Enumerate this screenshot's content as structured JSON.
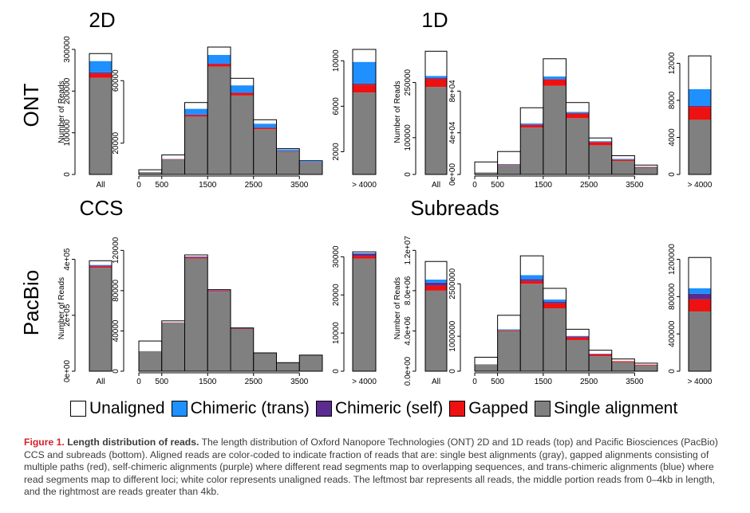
{
  "legend": [
    {
      "label": "Unaligned",
      "color": "#ffffff"
    },
    {
      "label": "Chimeric (trans)",
      "color": "#1e90ff"
    },
    {
      "label": "Chimeric (self)",
      "color": "#5b2c8f"
    },
    {
      "label": "Gapped",
      "color": "#ee1111"
    },
    {
      "label": "Single alignment",
      "color": "#808080"
    }
  ],
  "caption": {
    "label": "Figure 1.",
    "title": "Length distribution of reads.",
    "text": "The length distribution of Oxford Nanopore Technologies (ONT) 2D and 1D reads (top) and Pacific Biosciences (PacBio) CCS and subreads (bottom). Aligned reads are color-coded to indicate fraction of reads that are: single best alignments (gray), gapped alignments consisting of multiple paths (red), self-chimeric alignments (purple) where different read segments map to overlapping sequences, and trans-chimeric alignments (blue) where read segments map to different loci; white color represents unaligned reads. The leftmost bar represents all reads, the middle portion reads from 0–4kb in length, and the rightmost are reads greater than 4kb."
  },
  "row_labels": [
    "ONT",
    "PacBio"
  ],
  "chart_data": [
    {
      "type": "bar",
      "stacked": true,
      "title": "2D",
      "ylabel": "Number of Reads",
      "all": {
        "category": "All",
        "ylim": [
          0,
          300000
        ],
        "yticks": [
          0,
          100000,
          200000,
          300000
        ],
        "ytick_labels": [
          "0",
          "100000",
          "200000",
          "300000"
        ],
        "stack": {
          "single": 232000,
          "gapped": 10000,
          "self": 3000,
          "trans": 27000,
          "unaligned": 18000
        }
      },
      "mid": {
        "x": [
          0,
          500,
          1000,
          1500,
          2000,
          2500,
          3000,
          3500,
          4000
        ],
        "ylim": [
          0,
          80000
        ],
        "yticks": [
          20000,
          60000
        ],
        "ytick_labels": [
          "20000",
          "60000"
        ],
        "xticks": [
          0,
          500,
          1500,
          2500,
          3500
        ],
        "xtick_labels": [
          "0",
          "500",
          "1500",
          "2500",
          "3500"
        ],
        "stacks": [
          {
            "single": 1500,
            "gapped": 0,
            "self": 0,
            "trans": 0,
            "unaligned": 1500
          },
          {
            "single": 9500,
            "gapped": 300,
            "self": 0,
            "trans": 200,
            "unaligned": 2500
          },
          {
            "single": 37000,
            "gapped": 1000,
            "self": 300,
            "trans": 3700,
            "unaligned": 4000
          },
          {
            "single": 69000,
            "gapped": 1500,
            "self": 500,
            "trans": 5500,
            "unaligned": 5000
          },
          {
            "single": 50500,
            "gapped": 1500,
            "self": 400,
            "trans": 4600,
            "unaligned": 4500
          },
          {
            "single": 29000,
            "gapped": 800,
            "self": 200,
            "trans": 2500,
            "unaligned": 2500
          },
          {
            "single": 14500,
            "gapped": 300,
            "self": 100,
            "trans": 1100,
            "unaligned": 500
          },
          {
            "single": 7500,
            "gapped": 200,
            "self": 0,
            "trans": 800,
            "unaligned": 300
          }
        ]
      },
      "gt": {
        "category": "> 4000",
        "ylim": [
          0,
          11000
        ],
        "yticks": [
          2000,
          6000,
          10000
        ],
        "ytick_labels": [
          "2000",
          "6000",
          "10000"
        ],
        "stack": {
          "single": 7200,
          "gapped": 700,
          "self": 100,
          "trans": 1900,
          "unaligned": 1100
        }
      }
    },
    {
      "type": "bar",
      "stacked": true,
      "title": "1D",
      "ylabel": "Number of Reads",
      "all": {
        "category": "All",
        "ylim": [
          0,
          340000
        ],
        "yticks": [
          0,
          100000,
          250000
        ],
        "ytick_labels": [
          "0",
          "100000",
          "250000"
        ],
        "stack": {
          "single": 238000,
          "gapped": 22000,
          "self": 2000,
          "trans": 6000,
          "unaligned": 67000
        }
      },
      "mid": {
        "x": [
          0,
          500,
          1000,
          1500,
          2000,
          2500,
          3000,
          3500,
          4000
        ],
        "ylim": [
          0,
          120000
        ],
        "yticks": [
          0,
          40000,
          80000
        ],
        "ytick_labels": [
          "0e+00",
          "4e+04",
          "8e+04"
        ],
        "xticks": [
          0,
          500,
          1500,
          2500,
          3500
        ],
        "xtick_labels": [
          "0",
          "500",
          "1500",
          "2500",
          "3500"
        ],
        "stacks": [
          {
            "single": 2000,
            "gapped": 0,
            "self": 0,
            "trans": 0,
            "unaligned": 10000
          },
          {
            "single": 9000,
            "gapped": 500,
            "self": 0,
            "trans": 500,
            "unaligned": 12000
          },
          {
            "single": 45000,
            "gapped": 2500,
            "self": 300,
            "trans": 1200,
            "unaligned": 15000
          },
          {
            "single": 85000,
            "gapped": 6000,
            "self": 500,
            "trans": 2500,
            "unaligned": 17000
          },
          {
            "single": 54000,
            "gapped": 4500,
            "self": 300,
            "trans": 1200,
            "unaligned": 9000
          },
          {
            "single": 28000,
            "gapped": 3000,
            "self": 200,
            "trans": 800,
            "unaligned": 3000
          },
          {
            "single": 13000,
            "gapped": 1200,
            "self": 100,
            "trans": 700,
            "unaligned": 3000
          },
          {
            "single": 6500,
            "gapped": 600,
            "self": 0,
            "trans": 400,
            "unaligned": 1500
          }
        ]
      },
      "gt": {
        "category": "> 4000",
        "ylim": [
          0,
          13500
        ],
        "yticks": [
          0,
          4000,
          8000,
          12000
        ],
        "ytick_labels": [
          "0",
          "4000",
          "8000",
          "12000"
        ],
        "stack": {
          "single": 5900,
          "gapped": 1400,
          "self": 100,
          "trans": 1800,
          "unaligned": 3600
        }
      }
    },
    {
      "type": "bar",
      "stacked": true,
      "title": "CCS",
      "ylabel": "Number of Reads",
      "all": {
        "category": "All",
        "ylim": [
          0,
          450000
        ],
        "yticks": [
          0,
          200000,
          400000
        ],
        "ytick_labels": [
          "0e+00",
          "2e+05",
          "4e+05"
        ],
        "stack": {
          "single": 370000,
          "gapped": 5000,
          "self": 3000,
          "trans": 2000,
          "unaligned": 15000
        }
      },
      "mid": {
        "x": [
          0,
          500,
          1000,
          1500,
          2000,
          2500,
          3000,
          3500,
          4000
        ],
        "ylim": [
          0,
          125000
        ],
        "yticks": [
          0,
          40000,
          80000,
          120000
        ],
        "ytick_labels": [
          "0",
          "40000",
          "80000",
          "120000"
        ],
        "xticks": [
          0,
          500,
          1500,
          2500,
          3500
        ],
        "xtick_labels": [
          "0",
          "500",
          "1500",
          "2500",
          "3500"
        ],
        "stacks": [
          {
            "single": 20000,
            "gapped": 0,
            "self": 0,
            "trans": 0,
            "unaligned": 10000
          },
          {
            "single": 48000,
            "gapped": 300,
            "self": 200,
            "trans": 0,
            "unaligned": 1500
          },
          {
            "single": 112000,
            "gapped": 1000,
            "self": 800,
            "trans": 200,
            "unaligned": 1500
          },
          {
            "single": 79000,
            "gapped": 700,
            "self": 600,
            "trans": 200,
            "unaligned": 500
          },
          {
            "single": 42000,
            "gapped": 400,
            "self": 300,
            "trans": 100,
            "unaligned": 200
          },
          {
            "single": 18000,
            "gapped": 100,
            "self": 100,
            "trans": 0,
            "unaligned": 0
          },
          {
            "single": 8500,
            "gapped": 0,
            "self": 0,
            "trans": 0,
            "unaligned": 0
          },
          {
            "single": 16000,
            "gapped": 0,
            "self": 0,
            "trans": 0,
            "unaligned": 0
          }
        ]
      },
      "gt": {
        "category": "> 4000",
        "ylim": [
          0,
          33000
        ],
        "yticks": [
          0,
          10000,
          20000,
          30000
        ],
        "ytick_labels": [
          "0",
          "10000",
          "20000",
          "30000"
        ],
        "stack": {
          "single": 29500,
          "gapped": 700,
          "self": 600,
          "trans": 200,
          "unaligned": 300
        }
      }
    },
    {
      "type": "bar",
      "stacked": true,
      "title": "Subreads",
      "ylabel": "Number of Reads",
      "all": {
        "category": "All",
        "ylim": [
          0,
          12500000
        ],
        "yticks": [
          0,
          4000000,
          8000000,
          12000000
        ],
        "ytick_labels": [
          "0.0e+00",
          "4.0e+06",
          "8.0e+06",
          "1.2e+07"
        ],
        "stack": {
          "single": 8000000,
          "gapped": 500000,
          "self": 300000,
          "trans": 300000,
          "unaligned": 1800000
        }
      },
      "mid": {
        "x": [
          0,
          500,
          1000,
          1500,
          2000,
          2500,
          3000,
          3500,
          4000
        ],
        "ylim": [
          0,
          3600000
        ],
        "yticks": [
          0,
          1000000,
          2500000
        ],
        "ytick_labels": [
          "0",
          "1000000",
          "2500000"
        ],
        "xticks": [
          0,
          500,
          1500,
          2500,
          3500
        ],
        "xtick_labels": [
          "0",
          "500",
          "1500",
          "2500",
          "3500"
        ],
        "stacks": [
          {
            "single": 200000,
            "gapped": 0,
            "self": 0,
            "trans": 0,
            "unaligned": 200000
          },
          {
            "single": 1150000,
            "gapped": 20000,
            "self": 10000,
            "trans": 20000,
            "unaligned": 400000
          },
          {
            "single": 2500000,
            "gapped": 80000,
            "self": 50000,
            "trans": 120000,
            "unaligned": 550000
          },
          {
            "single": 1800000,
            "gapped": 140000,
            "self": 50000,
            "trans": 60000,
            "unaligned": 320000
          },
          {
            "single": 890000,
            "gapped": 80000,
            "self": 20000,
            "trans": 20000,
            "unaligned": 190000
          },
          {
            "single": 430000,
            "gapped": 50000,
            "self": 10000,
            "trans": 10000,
            "unaligned": 100000
          },
          {
            "single": 260000,
            "gapped": 30000,
            "self": 0,
            "trans": 0,
            "unaligned": 60000
          },
          {
            "single": 170000,
            "gapped": 20000,
            "self": 0,
            "trans": 0,
            "unaligned": 40000
          }
        ]
      },
      "gt": {
        "category": "> 4000",
        "ylim": [
          0,
          1350000
        ],
        "yticks": [
          0,
          400000,
          800000,
          1200000
        ],
        "ytick_labels": [
          "0",
          "400000",
          "800000",
          "1200000"
        ],
        "stack": {
          "single": 640000,
          "gapped": 130000,
          "self": 60000,
          "trans": 60000,
          "unaligned": 330000
        }
      }
    }
  ]
}
